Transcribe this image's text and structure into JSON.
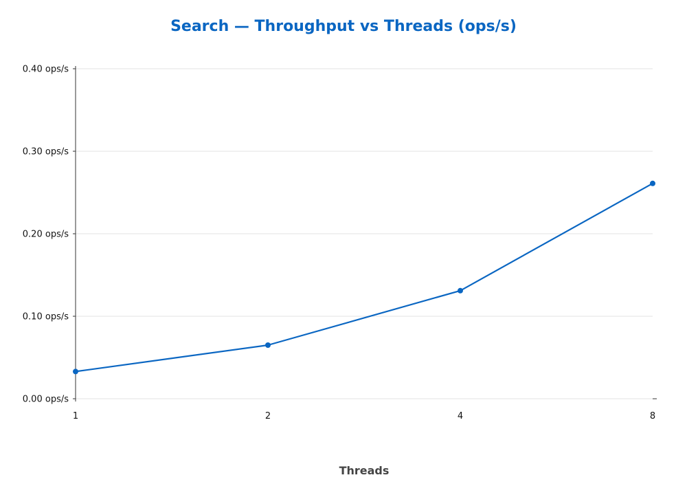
{
  "chart_data": {
    "type": "line",
    "title": "Search — Throughput vs Threads (ops/s)",
    "xlabel": "Threads",
    "ylabel": "",
    "x_scale": "log2",
    "categories": [
      "1",
      "2",
      "4",
      "8"
    ],
    "x": [
      1,
      2,
      4,
      8
    ],
    "y_tick_labels": [
      "0.00 ops/s",
      "0.10 ops/s",
      "0.20 ops/s",
      "0.30 ops/s",
      "0.40 ops/s"
    ],
    "y_ticks": [
      0.0,
      0.1,
      0.2,
      0.3,
      0.4
    ],
    "ylim": [
      0,
      0.4
    ],
    "grid": true,
    "series": [
      {
        "values": [
          0.033,
          0.065,
          0.131,
          0.261
        ],
        "color": "#0a66c2"
      }
    ]
  }
}
